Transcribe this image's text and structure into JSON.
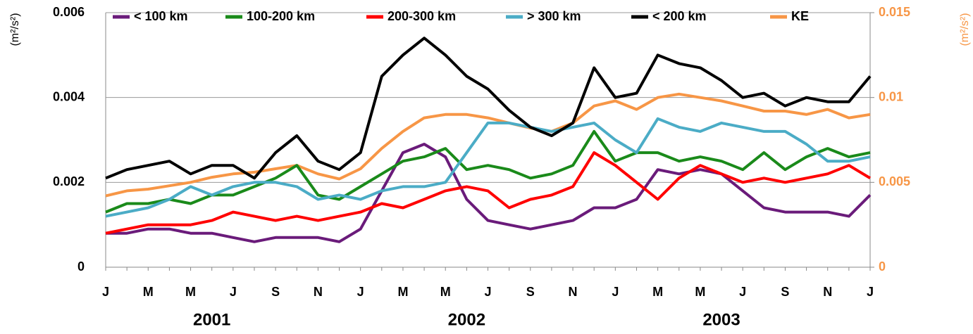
{
  "chart_data": {
    "type": "line",
    "categories": [
      "J",
      null,
      "M",
      null,
      "M",
      null,
      "J",
      null,
      "S",
      null,
      "N",
      null,
      "J",
      null,
      "M",
      null,
      "M",
      null,
      "J",
      null,
      "S",
      null,
      "N",
      null,
      "J",
      null,
      "M",
      null,
      "M",
      null,
      "J",
      null,
      "S",
      null,
      "N",
      null,
      "J"
    ],
    "year_labels": [
      "2001",
      "2002",
      "2003"
    ],
    "y_label": "(m²/s²)",
    "y2_label": "(m²/s²)",
    "ylim": [
      0,
      0.006
    ],
    "yticks": [
      0,
      0.002,
      0.004,
      0.006
    ],
    "y2lim": [
      0,
      0.015
    ],
    "y2ticks": [
      0,
      0.005,
      0.01,
      0.015
    ],
    "grid": true,
    "legend": "top",
    "y2_color": "#f79646",
    "series": [
      {
        "name": "< 100 km",
        "color": "#6a1b7a",
        "values": [
          0.0008,
          0.0008,
          0.0009,
          0.0009,
          0.0008,
          0.0008,
          0.0007,
          0.0006,
          0.0007,
          0.0007,
          0.0007,
          0.0006,
          0.0009,
          0.0018,
          0.0027,
          0.0029,
          0.0026,
          0.0016,
          0.0011,
          0.001,
          0.0009,
          0.001,
          0.0011,
          0.0014,
          0.0014,
          0.0016,
          0.0023,
          0.0022,
          0.0023,
          0.0022,
          0.0018,
          0.0014,
          0.0013,
          0.0013,
          0.0013,
          0.0012,
          0.0017
        ]
      },
      {
        "name": "100-200 km",
        "color": "#1a8a1a",
        "values": [
          0.0013,
          0.0015,
          0.0015,
          0.0016,
          0.0015,
          0.0017,
          0.0017,
          0.0019,
          0.0021,
          0.0024,
          0.0017,
          0.0016,
          0.0019,
          0.0022,
          0.0025,
          0.0026,
          0.0028,
          0.0023,
          0.0024,
          0.0023,
          0.0021,
          0.0022,
          0.0024,
          0.0032,
          0.0025,
          0.0027,
          0.0027,
          0.0025,
          0.0026,
          0.0025,
          0.0023,
          0.0027,
          0.0023,
          0.0026,
          0.0028,
          0.0026,
          0.0027
        ]
      },
      {
        "name": "200-300 km",
        "color": "#ff0000",
        "values": [
          0.0008,
          0.0009,
          0.001,
          0.001,
          0.001,
          0.0011,
          0.0013,
          0.0012,
          0.0011,
          0.0012,
          0.0011,
          0.0012,
          0.0013,
          0.0015,
          0.0014,
          0.0016,
          0.0018,
          0.0019,
          0.0018,
          0.0014,
          0.0016,
          0.0017,
          0.0019,
          0.0027,
          0.0024,
          0.002,
          0.0016,
          0.0021,
          0.0024,
          0.0022,
          0.002,
          0.0021,
          0.002,
          0.0021,
          0.0022,
          0.0024,
          0.0021
        ]
      },
      {
        "name": "> 300 km",
        "color": "#4bacc6",
        "values": [
          0.0012,
          0.0013,
          0.0014,
          0.0016,
          0.0019,
          0.0017,
          0.0019,
          0.002,
          0.002,
          0.0019,
          0.0016,
          0.0017,
          0.0016,
          0.0018,
          0.0019,
          0.0019,
          0.002,
          0.0027,
          0.0034,
          0.0034,
          0.0033,
          0.0032,
          0.0033,
          0.0034,
          0.003,
          0.0027,
          0.0035,
          0.0033,
          0.0032,
          0.0034,
          0.0033,
          0.0032,
          0.0032,
          0.0029,
          0.0025,
          0.0025,
          0.0026
        ]
      },
      {
        "name": "< 200 km",
        "color": "#000000",
        "values": [
          0.0021,
          0.0023,
          0.0024,
          0.0025,
          0.0022,
          0.0024,
          0.0024,
          0.0021,
          0.0027,
          0.0031,
          0.0025,
          0.0023,
          0.0027,
          0.0045,
          0.005,
          0.0054,
          0.005,
          0.0045,
          0.0042,
          0.0037,
          0.0033,
          0.0031,
          0.0034,
          0.0047,
          0.004,
          0.0041,
          0.005,
          0.0048,
          0.0047,
          0.0044,
          0.004,
          0.0041,
          0.0038,
          0.004,
          0.0039,
          0.0039,
          0.0045
        ]
      },
      {
        "name": "KE",
        "color": "#f79646",
        "axis": "y2",
        "values": [
          0.0042,
          0.0045,
          0.0046,
          0.0048,
          0.005,
          0.0053,
          0.0055,
          0.0056,
          0.0058,
          0.006,
          0.0055,
          0.0052,
          0.0058,
          0.007,
          0.008,
          0.0088,
          0.009,
          0.009,
          0.0088,
          0.0085,
          0.0082,
          0.008,
          0.0085,
          0.0095,
          0.0098,
          0.0093,
          0.01,
          0.0102,
          0.01,
          0.0098,
          0.0095,
          0.0092,
          0.0092,
          0.009,
          0.0093,
          0.0088,
          0.009
        ]
      }
    ]
  }
}
